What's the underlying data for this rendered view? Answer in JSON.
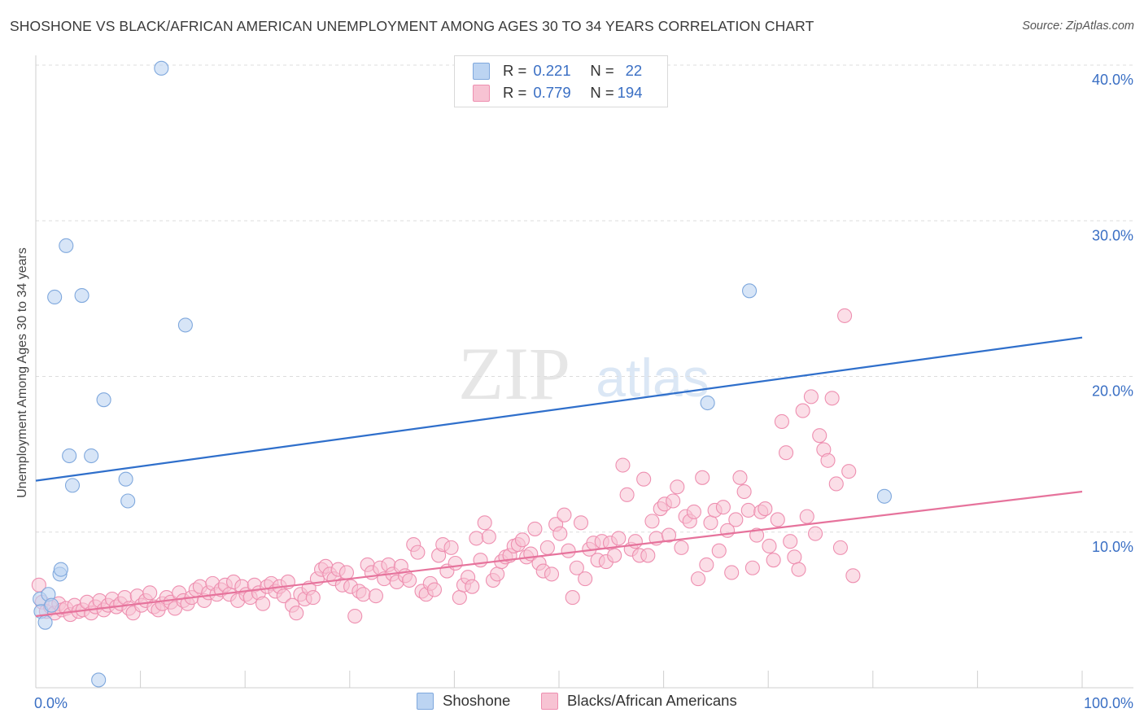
{
  "header": {
    "title": "SHOSHONE VS BLACK/AFRICAN AMERICAN UNEMPLOYMENT AMONG AGES 30 TO 34 YEARS CORRELATION CHART",
    "source": "Source: ZipAtlas.com"
  },
  "watermark": {
    "zip": "ZIP",
    "atlas": "atlas"
  },
  "legend_top": {
    "rows": [
      {
        "r_label": "R =",
        "r_value": "0.221",
        "n_label": "N =",
        "n_value": "22"
      },
      {
        "r_label": "R =",
        "r_value": "0.779",
        "n_label": "N =",
        "n_value": "194"
      }
    ]
  },
  "legend_bottom": {
    "items": [
      "Shoshone",
      "Blacks/African Americans"
    ]
  },
  "colors": {
    "shoshone_fill": "#bcd4f2",
    "shoshone_stroke": "#7fa8dd",
    "shoshone_line": "#2f6fcb",
    "black_fill": "#f7c3d3",
    "black_stroke": "#ee8fb0",
    "black_line": "#e6739c",
    "tick_label": "#3a6fc4",
    "grid": "#dddddd"
  },
  "chart_data": {
    "type": "scatter",
    "title": "SHOSHONE VS BLACK/AFRICAN AMERICAN UNEMPLOYMENT AMONG AGES 30 TO 34 YEARS CORRELATION CHART",
    "xlabel": "",
    "ylabel": "Unemployment Among Ages 30 to 34 years",
    "xlim": [
      0,
      100
    ],
    "ylim": [
      0,
      40
    ],
    "x_tick_labels": [
      "0.0%",
      "100.0%"
    ],
    "y_ticks": [
      10,
      20,
      30,
      40
    ],
    "y_tick_labels": [
      "10.0%",
      "20.0%",
      "30.0%",
      "40.0%"
    ],
    "grid": true,
    "legend": "top-center",
    "series": [
      {
        "name": "Shoshone",
        "r": 0.221,
        "n": 22,
        "trend": {
          "x": [
            0,
            100
          ],
          "y": [
            13.3,
            22.5
          ]
        },
        "points": [
          [
            0.4,
            5.7
          ],
          [
            0.5,
            4.9
          ],
          [
            0.9,
            4.2
          ],
          [
            1.2,
            6.0
          ],
          [
            1.5,
            5.3
          ],
          [
            1.8,
            25.1
          ],
          [
            2.3,
            7.3
          ],
          [
            2.4,
            7.6
          ],
          [
            2.9,
            28.4
          ],
          [
            3.2,
            14.9
          ],
          [
            3.5,
            13.0
          ],
          [
            4.4,
            25.2
          ],
          [
            5.3,
            14.9
          ],
          [
            6.0,
            0.5
          ],
          [
            6.5,
            18.5
          ],
          [
            8.6,
            13.4
          ],
          [
            8.8,
            12.0
          ],
          [
            12.0,
            39.8
          ],
          [
            14.3,
            23.3
          ],
          [
            64.2,
            18.3
          ],
          [
            68.2,
            25.5
          ],
          [
            81.1,
            12.3
          ]
        ]
      },
      {
        "name": "Blacks/African Americans",
        "r": 0.779,
        "n": 194,
        "trend": {
          "x": [
            0,
            100
          ],
          "y": [
            4.6,
            12.6
          ]
        },
        "points": [
          [
            0.3,
            6.6
          ],
          [
            0.6,
            5.5
          ],
          [
            1.0,
            4.9
          ],
          [
            1.4,
            5.2
          ],
          [
            1.8,
            4.8
          ],
          [
            2.2,
            5.4
          ],
          [
            2.5,
            5.0
          ],
          [
            2.9,
            5.1
          ],
          [
            3.3,
            4.7
          ],
          [
            3.7,
            5.3
          ],
          [
            4.1,
            4.9
          ],
          [
            4.5,
            5.0
          ],
          [
            4.9,
            5.5
          ],
          [
            5.3,
            4.8
          ],
          [
            5.7,
            5.2
          ],
          [
            6.1,
            5.6
          ],
          [
            6.5,
            5.0
          ],
          [
            6.9,
            5.3
          ],
          [
            7.3,
            5.7
          ],
          [
            7.7,
            5.2
          ],
          [
            8.1,
            5.4
          ],
          [
            8.5,
            5.8
          ],
          [
            8.9,
            5.1
          ],
          [
            9.3,
            4.8
          ],
          [
            9.7,
            5.9
          ],
          [
            10.1,
            5.3
          ],
          [
            10.5,
            5.6
          ],
          [
            10.9,
            6.1
          ],
          [
            11.3,
            5.2
          ],
          [
            11.7,
            5.0
          ],
          [
            12.1,
            5.4
          ],
          [
            12.5,
            5.8
          ],
          [
            12.9,
            5.5
          ],
          [
            13.3,
            5.1
          ],
          [
            13.7,
            6.1
          ],
          [
            14.1,
            5.6
          ],
          [
            14.5,
            5.4
          ],
          [
            14.9,
            5.8
          ],
          [
            15.3,
            6.3
          ],
          [
            15.7,
            6.5
          ],
          [
            16.1,
            5.6
          ],
          [
            16.5,
            6.1
          ],
          [
            16.9,
            6.7
          ],
          [
            17.3,
            6.0
          ],
          [
            17.7,
            6.3
          ],
          [
            18.1,
            6.6
          ],
          [
            18.5,
            6.0
          ],
          [
            18.9,
            6.8
          ],
          [
            19.3,
            5.6
          ],
          [
            19.7,
            6.5
          ],
          [
            20.1,
            6.0
          ],
          [
            20.5,
            5.8
          ],
          [
            20.9,
            6.6
          ],
          [
            21.3,
            6.1
          ],
          [
            21.7,
            5.4
          ],
          [
            22.1,
            6.5
          ],
          [
            22.5,
            6.7
          ],
          [
            22.9,
            6.2
          ],
          [
            23.3,
            6.5
          ],
          [
            23.7,
            5.9
          ],
          [
            24.1,
            6.8
          ],
          [
            24.5,
            5.3
          ],
          [
            24.9,
            4.8
          ],
          [
            25.3,
            6.0
          ],
          [
            25.7,
            5.7
          ],
          [
            26.1,
            6.4
          ],
          [
            26.5,
            5.8
          ],
          [
            26.9,
            7.0
          ],
          [
            27.3,
            7.6
          ],
          [
            27.7,
            7.8
          ],
          [
            28.1,
            7.3
          ],
          [
            28.5,
            7.0
          ],
          [
            28.9,
            7.6
          ],
          [
            29.3,
            6.6
          ],
          [
            29.7,
            7.4
          ],
          [
            30.1,
            6.5
          ],
          [
            30.5,
            4.6
          ],
          [
            30.9,
            6.2
          ],
          [
            31.3,
            6.0
          ],
          [
            31.7,
            7.9
          ],
          [
            32.1,
            7.4
          ],
          [
            32.5,
            5.9
          ],
          [
            32.9,
            7.7
          ],
          [
            33.3,
            7.0
          ],
          [
            33.7,
            7.9
          ],
          [
            34.1,
            7.3
          ],
          [
            34.5,
            6.8
          ],
          [
            34.9,
            7.8
          ],
          [
            35.3,
            7.2
          ],
          [
            35.7,
            6.9
          ],
          [
            36.1,
            9.2
          ],
          [
            36.5,
            8.7
          ],
          [
            36.9,
            6.2
          ],
          [
            37.3,
            6.0
          ],
          [
            37.7,
            6.7
          ],
          [
            38.1,
            6.3
          ],
          [
            38.5,
            8.5
          ],
          [
            38.9,
            9.2
          ],
          [
            39.3,
            7.5
          ],
          [
            39.7,
            9.0
          ],
          [
            40.1,
            8.0
          ],
          [
            40.5,
            5.8
          ],
          [
            40.9,
            6.6
          ],
          [
            41.3,
            7.1
          ],
          [
            41.7,
            6.5
          ],
          [
            42.1,
            9.6
          ],
          [
            42.5,
            8.2
          ],
          [
            42.9,
            10.6
          ],
          [
            43.3,
            9.7
          ],
          [
            43.7,
            6.9
          ],
          [
            44.1,
            7.3
          ],
          [
            44.5,
            8.1
          ],
          [
            44.9,
            8.4
          ],
          [
            45.3,
            8.5
          ],
          [
            45.7,
            9.1
          ],
          [
            46.1,
            9.2
          ],
          [
            46.5,
            9.5
          ],
          [
            46.9,
            8.4
          ],
          [
            47.3,
            8.6
          ],
          [
            47.7,
            10.2
          ],
          [
            48.1,
            8.0
          ],
          [
            48.5,
            7.5
          ],
          [
            48.9,
            9.0
          ],
          [
            49.3,
            7.3
          ],
          [
            49.7,
            10.5
          ],
          [
            50.1,
            9.9
          ],
          [
            50.5,
            11.1
          ],
          [
            50.9,
            8.8
          ],
          [
            51.3,
            5.8
          ],
          [
            51.7,
            7.7
          ],
          [
            52.1,
            10.6
          ],
          [
            52.5,
            7.0
          ],
          [
            52.9,
            8.9
          ],
          [
            53.3,
            9.3
          ],
          [
            53.7,
            8.2
          ],
          [
            54.1,
            9.4
          ],
          [
            54.5,
            8.1
          ],
          [
            54.9,
            9.3
          ],
          [
            55.3,
            8.5
          ],
          [
            55.7,
            9.6
          ],
          [
            56.1,
            14.3
          ],
          [
            56.5,
            12.4
          ],
          [
            56.9,
            8.9
          ],
          [
            57.3,
            9.4
          ],
          [
            57.7,
            8.5
          ],
          [
            58.1,
            13.4
          ],
          [
            58.5,
            8.5
          ],
          [
            58.9,
            10.7
          ],
          [
            59.3,
            9.6
          ],
          [
            59.7,
            11.5
          ],
          [
            60.1,
            11.8
          ],
          [
            60.5,
            9.8
          ],
          [
            60.9,
            12.0
          ],
          [
            61.3,
            12.9
          ],
          [
            61.7,
            9.0
          ],
          [
            62.1,
            11.0
          ],
          [
            62.5,
            10.7
          ],
          [
            62.9,
            11.3
          ],
          [
            63.3,
            7.0
          ],
          [
            63.7,
            13.5
          ],
          [
            64.1,
            7.9
          ],
          [
            64.5,
            10.6
          ],
          [
            64.9,
            11.4
          ],
          [
            65.3,
            8.8
          ],
          [
            65.7,
            11.6
          ],
          [
            66.1,
            10.1
          ],
          [
            66.5,
            7.4
          ],
          [
            66.9,
            10.8
          ],
          [
            67.3,
            13.5
          ],
          [
            67.7,
            12.6
          ],
          [
            68.1,
            11.4
          ],
          [
            68.5,
            7.7
          ],
          [
            68.9,
            9.8
          ],
          [
            69.3,
            11.3
          ],
          [
            69.7,
            11.5
          ],
          [
            70.1,
            9.1
          ],
          [
            70.5,
            8.2
          ],
          [
            70.9,
            10.8
          ],
          [
            71.3,
            17.1
          ],
          [
            71.7,
            15.1
          ],
          [
            72.1,
            9.4
          ],
          [
            72.5,
            8.4
          ],
          [
            72.9,
            7.6
          ],
          [
            73.3,
            17.8
          ],
          [
            73.7,
            11.0
          ],
          [
            74.1,
            18.7
          ],
          [
            74.5,
            9.9
          ],
          [
            74.9,
            16.2
          ],
          [
            75.3,
            15.3
          ],
          [
            75.7,
            14.6
          ],
          [
            76.1,
            18.6
          ],
          [
            76.5,
            13.1
          ],
          [
            76.9,
            9.0
          ],
          [
            77.3,
            23.9
          ],
          [
            77.7,
            13.9
          ],
          [
            78.1,
            7.2
          ]
        ]
      }
    ]
  }
}
